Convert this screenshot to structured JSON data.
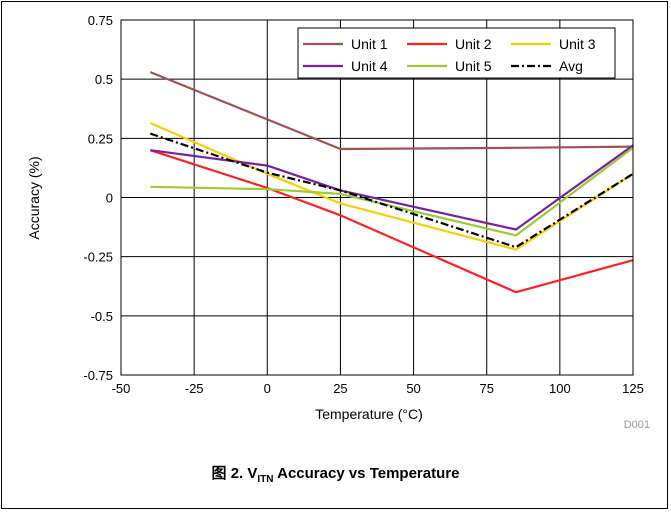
{
  "chart_data": {
    "type": "line",
    "title": "",
    "xlabel": "Temperature (°C)",
    "ylabel": "Accuracy (%)",
    "xlim": [
      -50,
      125
    ],
    "ylim": [
      -0.75,
      0.75
    ],
    "x_ticks": [
      -50,
      -25,
      0,
      25,
      50,
      75,
      100,
      125
    ],
    "x_tick_labels": [
      "-50",
      "-25",
      "0",
      "25",
      "50",
      "75",
      "100",
      "125"
    ],
    "y_ticks": [
      0.75,
      0.5,
      0.25,
      0,
      -0.25,
      -0.5,
      -0.75
    ],
    "y_tick_labels": [
      "0.75",
      "0.5",
      "0.25",
      "0",
      "-0.25",
      "-0.5",
      "-0.75"
    ],
    "grid": true,
    "legend_position": "top-right",
    "x": [
      -40,
      0,
      25,
      85,
      125
    ],
    "series": [
      {
        "name": "Unit 1",
        "color": "#a0524f",
        "dash": "solid",
        "values": [
          0.53,
          0.33,
          0.205,
          0.21,
          0.215
        ]
      },
      {
        "name": "Unit 2",
        "color": "#ff2020",
        "dash": "solid",
        "values": [
          0.2,
          0.04,
          -0.075,
          -0.4,
          -0.265
        ]
      },
      {
        "name": "Unit 3",
        "color": "#ffcc00",
        "dash": "solid",
        "values": [
          0.315,
          0.1,
          -0.025,
          -0.22,
          0.1
        ]
      },
      {
        "name": "Unit 4",
        "color": "#7a1fa0",
        "dash": "solid",
        "values": [
          0.2,
          0.135,
          0.03,
          -0.135,
          0.22
        ]
      },
      {
        "name": "Unit 5",
        "color": "#99cc33",
        "dash": "solid",
        "values": [
          0.045,
          0.035,
          0.015,
          -0.16,
          0.21
        ]
      },
      {
        "name": "Avg",
        "color": "#000000",
        "dash": "dashdot",
        "values": [
          0.27,
          0.105,
          0.03,
          -0.21,
          0.1
        ]
      }
    ],
    "watermark": "D001"
  },
  "caption": {
    "prefix": "图 2. V",
    "subscript": "ITN",
    "suffix": " Accuracy vs Temperature"
  }
}
